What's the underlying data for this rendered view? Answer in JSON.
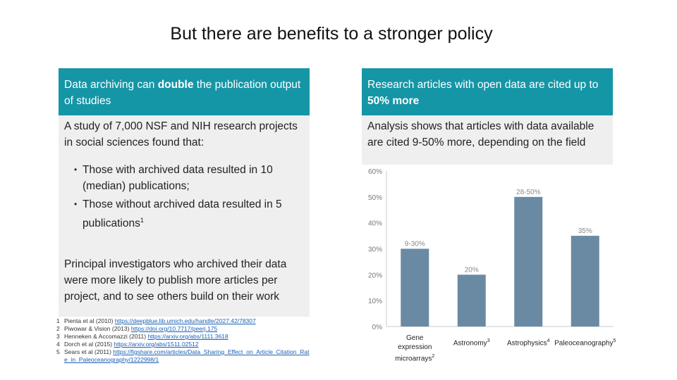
{
  "title": "But there are benefits to a stronger policy",
  "left": {
    "header_pre": "Data archiving can ",
    "header_bold": "double",
    "header_post": " the publication output of studies",
    "intro": "A study of 7,000 NSF and NIH research projects in social sciences found that:",
    "bullets": [
      {
        "text": "Those with archived data resulted in 10 (median) publications;",
        "sup": ""
      },
      {
        "text": "Those without archived data resulted in 5 publications",
        "sup": "1"
      }
    ],
    "paragraph": "Principal investigators who archived  their data were more likely to publish more articles per project, and to see others build on their work"
  },
  "right": {
    "header_pre": "Research articles with open data are cited up to ",
    "header_bold": "50% more",
    "body": "Analysis shows that articles with data available are cited 9-50% more, depending on the field"
  },
  "references": [
    {
      "num": "1",
      "text": "Pienta et al (2010) ",
      "link": "https://deepblue.lib.umich.edu/handle/2027.42/78307"
    },
    {
      "num": "2",
      "text": "Piwowar & Vision (2013) ",
      "link": "https://doi.org/10.7717/peerj.175"
    },
    {
      "num": "3",
      "text": "Henneken & Accomazzi (2011) ",
      "link": "https://arxiv.org/abs/1111.3618"
    },
    {
      "num": "4",
      "text": "Dorch et al (2015)  ",
      "link": "https://arxiv.org/abs/1511.02512"
    },
    {
      "num": "5",
      "text": "Sears et al (2011) ",
      "link": "https://figshare.com/articles/Data_Sharing_Effect_on_Article_Citation_Rate_in_Paleoceanography/1222998/1"
    }
  ],
  "chart_data": {
    "type": "bar",
    "categories": [
      {
        "label": "Gene expression microarrays",
        "sup": "2"
      },
      {
        "label": "Astronomy",
        "sup": "3"
      },
      {
        "label": "Astrophysics",
        "sup": "4"
      },
      {
        "label": "Paleoceanography",
        "sup": "5"
      }
    ],
    "values": [
      30,
      20,
      50,
      35
    ],
    "data_labels": [
      "9-30%",
      "20%",
      "28-50%",
      "35%"
    ],
    "y_ticks": [
      "0%",
      "10%",
      "20%",
      "30%",
      "40%",
      "50%",
      "60%"
    ],
    "ylim": [
      0,
      60
    ],
    "bar_color": "#6a8aa4",
    "grid": false
  },
  "colors": {
    "teal": "#1596a6",
    "grey": "#efefef"
  }
}
